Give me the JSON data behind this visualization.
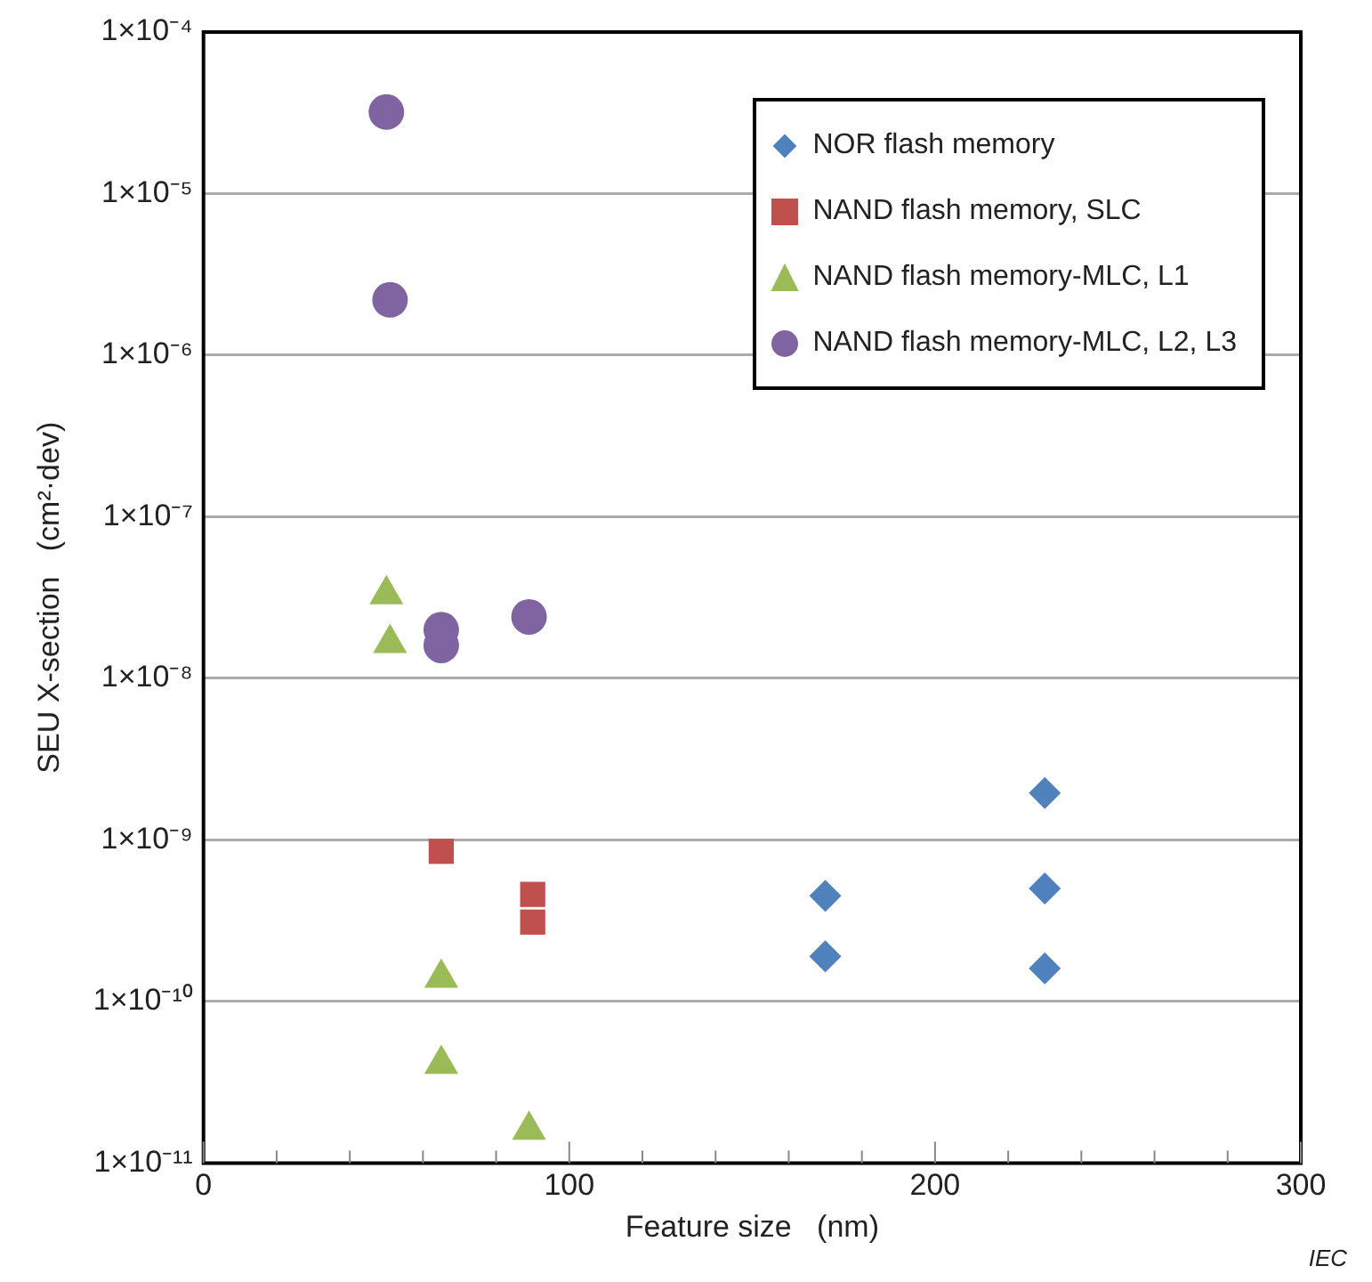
{
  "chart_data": {
    "type": "scatter",
    "xlabel": "Feature size   (nm)",
    "ylabel": "SEU X-section   (cm²·dev)",
    "annotations": [
      "IEC"
    ],
    "log": "y",
    "grid": "y",
    "legend": "top right",
    "xlim": [
      0,
      300
    ],
    "xticks": [
      0,
      {
        "value": 20,
        "label": null
      },
      {
        "value": 40,
        "label": null
      },
      {
        "value": 60,
        "label": null
      },
      {
        "value": 80,
        "label": null
      },
      100,
      {
        "value": 120,
        "label": null
      },
      {
        "value": 140,
        "label": null
      },
      {
        "value": 160,
        "label": null
      },
      {
        "value": 180,
        "label": null
      },
      200,
      {
        "value": 220,
        "label": null
      },
      {
        "value": 240,
        "label": null
      },
      {
        "value": 260,
        "label": null
      },
      {
        "value": 280,
        "label": null
      },
      300
    ],
    "ylim": [
      1e-11,
      0.0001
    ],
    "yticks": [
      {
        "value": 1e-11,
        "label": "1×10⁻¹¹"
      },
      {
        "value": 1e-10,
        "label": "1×10⁻¹⁰"
      },
      {
        "value": 1e-09,
        "label": "1×10⁻⁹"
      },
      {
        "value": 1e-08,
        "label": "1×10⁻⁸"
      },
      {
        "value": 1e-07,
        "label": "1×10⁻⁷"
      },
      {
        "value": 1e-06,
        "label": "1×10⁻⁶"
      },
      {
        "value": 1e-05,
        "label": "1×10⁻⁵"
      },
      {
        "value": 0.0001,
        "label": "1×10⁻⁴"
      }
    ],
    "series": [
      {
        "name": "NOR flash memory",
        "color": "#4f81bd",
        "marker": "diamond",
        "x": [
          170,
          170,
          230,
          230,
          230
        ],
        "values": [
          4.5e-10,
          1.9e-10,
          1.95e-09,
          5e-10,
          1.6e-10
        ]
      },
      {
        "name": "NAND flash memory, SLC",
        "color": "#c0504d",
        "marker": "square",
        "x": [
          65,
          90,
          90
        ],
        "values": [
          8.5e-10,
          4.6e-10,
          3.1e-10
        ]
      },
      {
        "name": "NAND flash memory-MLC, L1",
        "color": "#9bbb59",
        "marker": "triangle",
        "x": [
          50,
          51,
          65,
          65,
          89
        ],
        "values": [
          3.3e-08,
          1.65e-08,
          1.4e-10,
          4.1e-11,
          1.6e-11
        ]
      },
      {
        "name": "NAND flash memory-MLC, L2, L3",
        "color": "#8064a2",
        "marker": "circle",
        "x": [
          50,
          51,
          65,
          65,
          89
        ],
        "values": [
          3.2e-05,
          2.2e-06,
          2e-08,
          1.6e-08,
          2.4e-08
        ]
      }
    ]
  }
}
